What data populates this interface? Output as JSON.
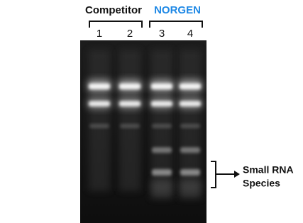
{
  "groups": [
    {
      "name": "Competitor"
    },
    {
      "name": "NORGEN"
    }
  ],
  "lanes": [
    "1",
    "2",
    "3",
    "4"
  ],
  "annotation": {
    "lines": [
      "Small RNA",
      "Species"
    ]
  }
}
